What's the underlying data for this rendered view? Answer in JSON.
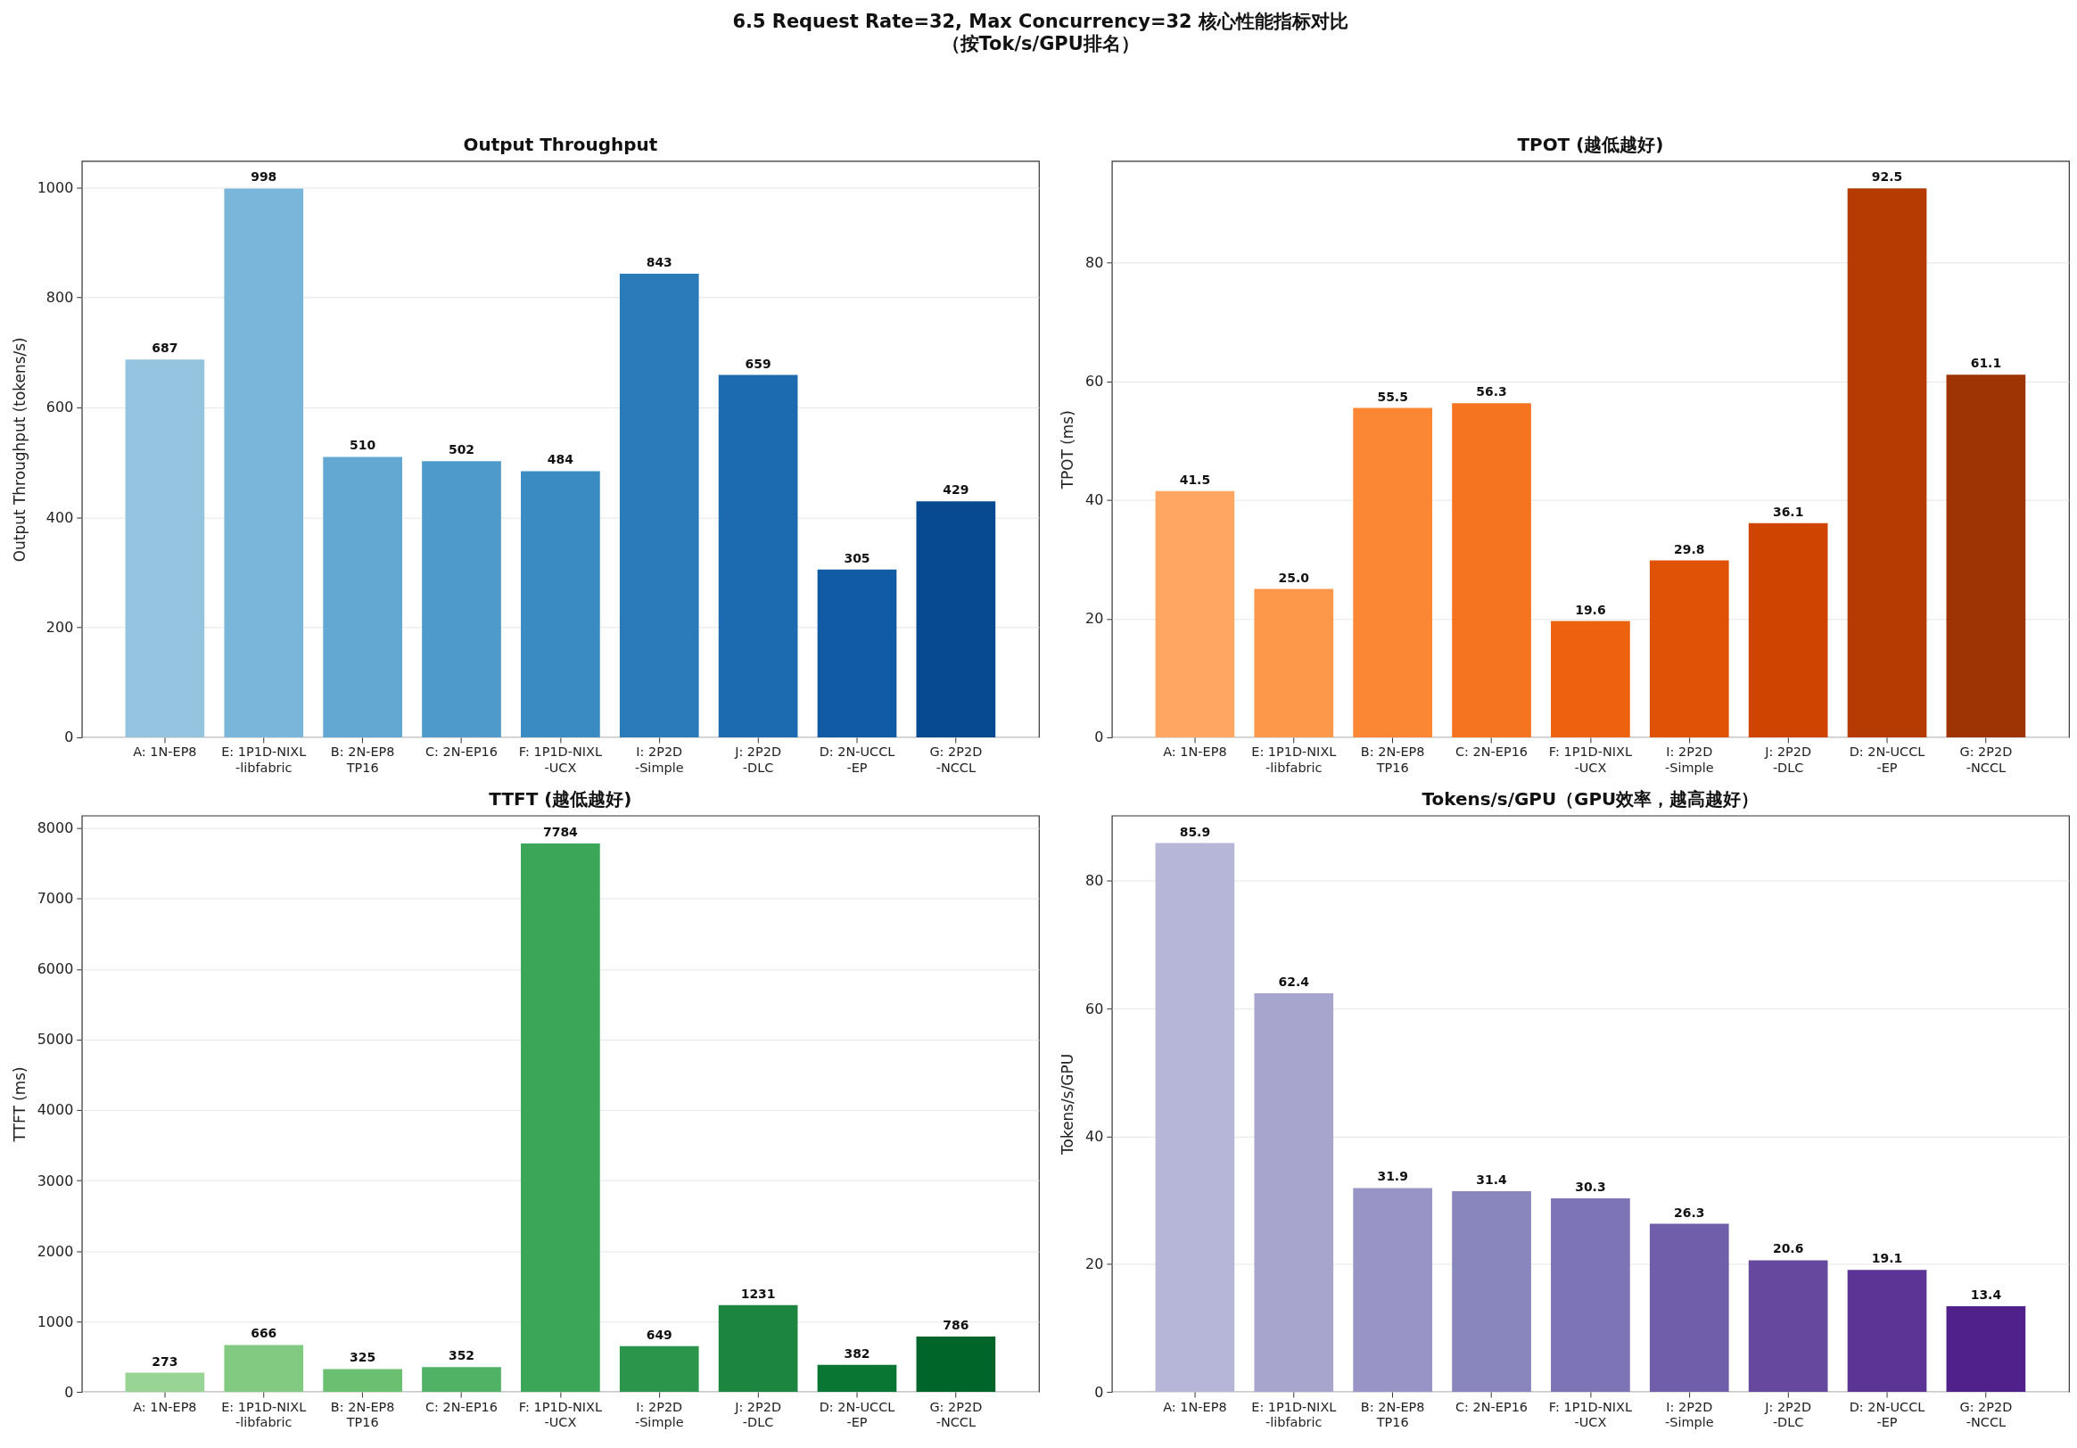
{
  "chart_data": [
    {
      "type": "other",
      "title": "6.5 Request Rate=32, Max Concurrency=32 核心性能指标对比",
      "subtitle": "（按Tok/s/GPU排名）"
    },
    {
      "type": "bar",
      "title": "Output Throughput",
      "ylabel": "Output Throughput (tokens/s)",
      "categories": [
        "A: 1N-EP8",
        "E: 1P1D-NIXL\n-libfabric",
        "B: 2N-EP8\nTP16",
        "C: 2N-EP16",
        "F: 1P1D-NIXL\n-UCX",
        "I: 2P2D\n-Simple",
        "J: 2P2D\n-DLC",
        "D: 2N-UCCL\n-EP",
        "G: 2P2D\n-NCCL"
      ],
      "values": [
        687,
        998,
        510,
        502,
        484,
        843,
        659,
        305,
        429
      ],
      "colors": [
        "#94c4df",
        "#7ab6d9",
        "#63a8d3",
        "#4e9acb",
        "#3b8bc3",
        "#2b7bba",
        "#1c6bb0",
        "#105ba4",
        "#084a92"
      ],
      "ylim": [
        0,
        1048
      ],
      "yticks": [
        0,
        200,
        400,
        600,
        800,
        1000
      ],
      "grid": "y",
      "data_labels": true
    },
    {
      "type": "bar",
      "title": "TPOT (越低越好)",
      "ylabel": "TPOT (ms)",
      "categories": [
        "A: 1N-EP8",
        "E: 1P1D-NIXL\n-libfabric",
        "B: 2N-EP8\nTP16",
        "C: 2N-EP16",
        "F: 1P1D-NIXL\n-UCX",
        "I: 2P2D\n-Simple",
        "J: 2P2D\n-DLC",
        "D: 2N-UCCL\n-EP",
        "G: 2P2D\n-NCCL"
      ],
      "values": [
        41.5,
        25.0,
        55.5,
        56.3,
        19.6,
        29.8,
        36.1,
        92.5,
        61.1
      ],
      "value_labels": [
        "41.5",
        "25.0",
        "55.5",
        "56.3",
        "19.6",
        "29.8",
        "36.1",
        "92.5",
        "61.1"
      ],
      "colors": [
        "#fda762",
        "#fd974a",
        "#fb8634",
        "#f5741f",
        "#ec620f",
        "#e05206",
        "#cf4401",
        "#b53b02",
        "#9e3303"
      ],
      "ylim": [
        0,
        97.1
      ],
      "yticks": [
        0,
        20,
        40,
        60,
        80
      ],
      "grid": "y"
    },
    {
      "type": "bar",
      "title": "TTFT (越低越好)",
      "ylabel": "TTFT (ms)",
      "categories": [
        "A: 1N-EP8",
        "E: 1P1D-NIXL\n-libfabric",
        "B: 2N-EP8\nTP16",
        "C: 2N-EP16",
        "F: 1P1D-NIXL\n-UCX",
        "I: 2P2D\n-Simple",
        "J: 2P2D\n-DLC",
        "D: 2N-UCCL\n-EP",
        "G: 2P2D\n-NCCL"
      ],
      "values": [
        273,
        666,
        325,
        352,
        7784,
        649,
        1231,
        382,
        786
      ],
      "colors": [
        "#98d594",
        "#82ca81",
        "#6abf71",
        "#50b264",
        "#3ba558",
        "#2c954c",
        "#1c8540",
        "#0a7633",
        "#006529"
      ],
      "ylim": [
        0,
        8180
      ],
      "yticks": [
        0,
        1000,
        2000,
        3000,
        4000,
        5000,
        6000,
        7000,
        8000
      ],
      "grid": "y",
      "data_labels": true
    },
    {
      "type": "bar",
      "title": "Tokens/s/GPU（GPU效率，越高越好）",
      "ylabel": "Tokens/s/GPU",
      "categories": [
        "A: 1N-EP8",
        "E: 1P1D-NIXL\n-libfabric",
        "B: 2N-EP8\nTP16",
        "C: 2N-EP16",
        "F: 1P1D-NIXL\n-UCX",
        "I: 2P2D\n-Simple",
        "J: 2P2D\n-DLC",
        "D: 2N-UCCL\n-EP",
        "G: 2P2D\n-NCCL"
      ],
      "values": [
        85.9,
        62.4,
        31.9,
        31.4,
        30.3,
        26.3,
        20.6,
        19.1,
        13.4
      ],
      "colors": [
        "#b6b6d8",
        "#a7a5ce",
        "#9894c5",
        "#8986be",
        "#7c74b5",
        "#715eaa",
        "#66499f",
        "#5b3495",
        "#50208b"
      ],
      "ylim": [
        0,
        90.2
      ],
      "yticks": [
        0,
        20,
        40,
        60,
        80
      ],
      "grid": "y",
      "data_labels": true
    }
  ]
}
